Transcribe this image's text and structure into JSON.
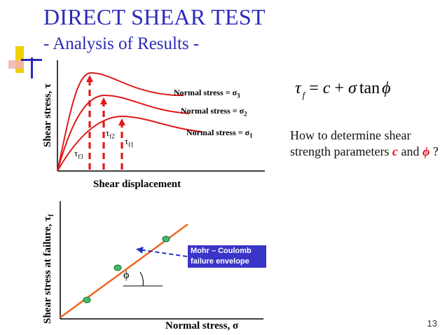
{
  "slide": {
    "title": "DIRECT SHEAR TEST",
    "subtitle": "- Analysis of Results -",
    "page_number": "13"
  },
  "formula": {
    "lhs": "τ",
    "lhs_sub": "f",
    "eq": "=",
    "c": "c",
    "plus": "+",
    "sigma": "σ",
    "fn": "tan",
    "phi": "ϕ"
  },
  "question": {
    "text_1": "How to determine shear strength parameters ",
    "c": "c",
    "text_2": " and ",
    "phi": "ϕ",
    "text_3": " ?"
  },
  "colors": {
    "title": "#2b2bb8",
    "curves": "#e01a1a",
    "arrows": "#e01a1a",
    "envelope": "#f26522",
    "points": "#3dbf6a",
    "callout_bg": "#3a34c8",
    "callout_arrow": "#2233bb",
    "highlight": "#e0121a"
  },
  "top_plot": {
    "ylabel_main": "Shear stress, ",
    "ylabel_sym": "τ",
    "xlabel": "Shear displacement",
    "curves": [
      {
        "name": "σ3",
        "label_prefix": "Normal stress = σ",
        "label_sub": "3"
      },
      {
        "name": "σ2",
        "label_prefix": "Normal stress = σ",
        "label_sub": "2"
      },
      {
        "name": "σ1",
        "label_prefix": "Normal stress = σ",
        "label_sub": "1"
      }
    ],
    "peaks": [
      {
        "sym": "τ",
        "sub": "f3"
      },
      {
        "sym": "τ",
        "sub": "f2"
      },
      {
        "sym": "τ",
        "sub": "f1"
      }
    ]
  },
  "bottom_plot": {
    "ylabel_main": "Shear stress at failure, ",
    "ylabel_sym": "τ",
    "ylabel_sub": "f",
    "xlabel": "Normal stress, σ",
    "callout_line1": "Mohr – Coulomb",
    "callout_line2": "failure envelope",
    "angle_label": "ϕ"
  }
}
